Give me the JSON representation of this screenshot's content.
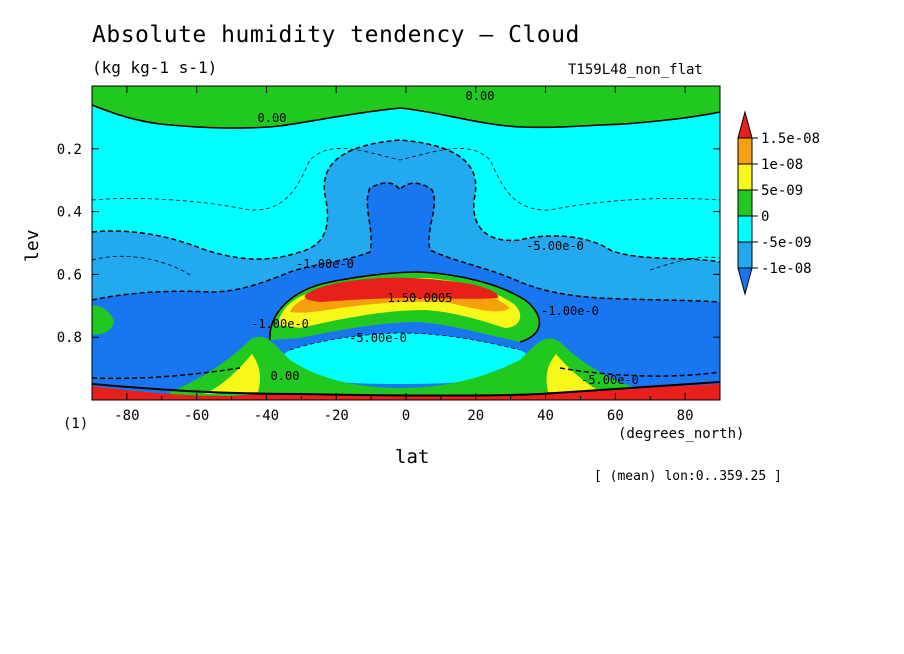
{
  "chart_data": {
    "type": "heatmap",
    "title": "Absolute humidity tendency — Cloud",
    "units": "(kg kg-1 s-1)",
    "run_label": "T159L48_non_flat",
    "xlabel": "lat",
    "x_unit": "(degrees_north)",
    "ylabel": "lev",
    "y_unit_tick": "(1)",
    "footnote": "[ (mean) lon:0..359.25 ]",
    "xlim": [
      -90,
      90
    ],
    "ylim": [
      1.0,
      0.0
    ],
    "x_ticks": [
      "-80",
      "-60",
      "-40",
      "-20",
      "0",
      "20",
      "40",
      "60",
      "80"
    ],
    "y_ticks": [
      "0.2",
      "0.4",
      "0.6",
      "0.8"
    ],
    "colorbar": {
      "labels": [
        "1.5e-08",
        "1e-08",
        "5e-09",
        "0",
        "-5e-09",
        "-1e-08"
      ],
      "colors": [
        "#e8201c",
        "#f5a10e",
        "#f7f71a",
        "#20c820",
        "#00ffff",
        "#22a9f0",
        "#1877f0"
      ]
    },
    "contour_labels": [
      "0.00",
      "-1.00e-0",
      "-5.00e-0",
      "1.50-0005",
      "-1.00e-0",
      "-5.00e-0",
      "0.00",
      "-5.00e-0",
      "0.00",
      "-1.00e-0"
    ]
  }
}
